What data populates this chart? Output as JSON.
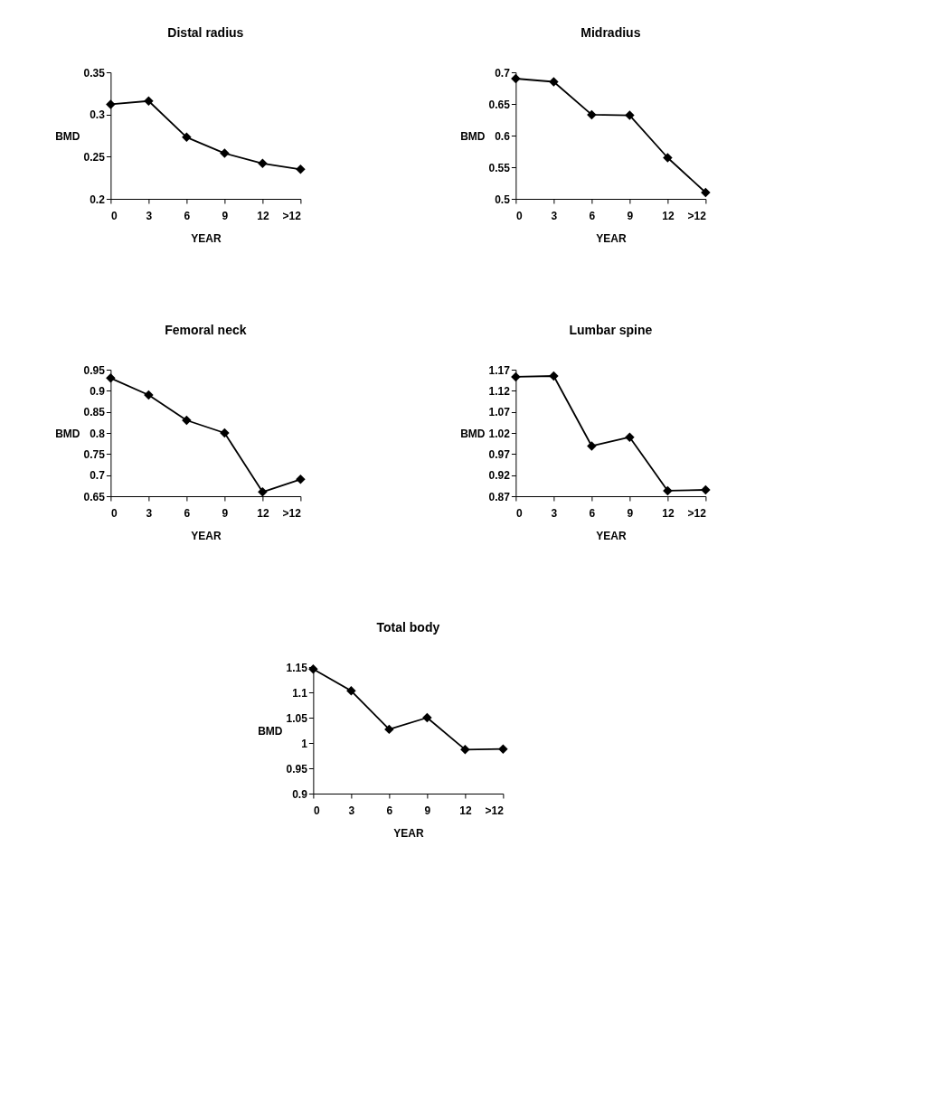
{
  "chart_data": [
    {
      "type": "line",
      "title": "Distal radius",
      "xlabel": "YEAR",
      "ylabel": "BMD",
      "categories": [
        "0",
        "3",
        "6",
        "9",
        "12",
        ">12"
      ],
      "series": [
        {
          "color": "#000000",
          "values": [
            0.312,
            0.316,
            0.273,
            0.254,
            0.242,
            0.235
          ]
        }
      ],
      "ylim": [
        0.2,
        0.35
      ],
      "yticks": [
        0.2,
        0.25,
        0.3,
        0.35
      ],
      "marker": "diamond",
      "grid": false,
      "legend": false
    },
    {
      "type": "line",
      "title": "Midradius",
      "xlabel": "YEAR",
      "ylabel": "BMD",
      "categories": [
        "0",
        "3",
        "6",
        "9",
        "12",
        ">12"
      ],
      "series": [
        {
          "color": "#000000",
          "values": [
            0.69,
            0.685,
            0.633,
            0.632,
            0.565,
            0.51
          ]
        }
      ],
      "ylim": [
        0.5,
        0.7
      ],
      "yticks": [
        0.5,
        0.55,
        0.6,
        0.65,
        0.7
      ],
      "marker": "diamond",
      "grid": false,
      "legend": false
    },
    {
      "type": "line",
      "title": "Femoral neck",
      "xlabel": "YEAR",
      "ylabel": "BMD",
      "categories": [
        "0",
        "3",
        "6",
        "9",
        "12",
        ">12"
      ],
      "series": [
        {
          "color": "#000000",
          "values": [
            0.93,
            0.89,
            0.83,
            0.8,
            0.66,
            0.69
          ]
        }
      ],
      "ylim": [
        0.65,
        0.95
      ],
      "yticks": [
        0.65,
        0.7,
        0.75,
        0.8,
        0.85,
        0.9,
        0.95
      ],
      "marker": "diamond",
      "grid": false,
      "legend": false
    },
    {
      "type": "line",
      "title": "Lumbar spine",
      "xlabel": "YEAR",
      "ylabel": "BMD",
      "categories": [
        "0",
        "3",
        "6",
        "9",
        "12",
        ">12"
      ],
      "series": [
        {
          "color": "#000000",
          "values": [
            1.153,
            1.155,
            0.989,
            1.01,
            0.883,
            0.885
          ]
        }
      ],
      "ylim": [
        0.87,
        1.17
      ],
      "yticks": [
        0.87,
        0.92,
        0.97,
        1.02,
        1.07,
        1.12,
        1.17
      ],
      "marker": "diamond",
      "grid": false,
      "legend": false
    },
    {
      "type": "line",
      "title": "Total body",
      "xlabel": "YEAR",
      "ylabel": "BMD",
      "categories": [
        "0",
        "3",
        "6",
        "9",
        "12",
        ">12"
      ],
      "series": [
        {
          "color": "#000000",
          "values": [
            1.146,
            1.103,
            1.027,
            1.05,
            0.987,
            0.988
          ]
        }
      ],
      "ylim": [
        0.9,
        1.15
      ],
      "yticks": [
        0.9,
        0.95,
        1,
        1.05,
        1.1,
        1.15
      ],
      "marker": "diamond",
      "grid": false,
      "legend": false
    }
  ]
}
